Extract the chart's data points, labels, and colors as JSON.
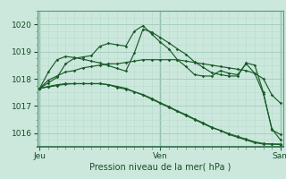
{
  "xlabel": "Pression niveau de la mer( hPa )",
  "background_color": "#cce8dc",
  "grid_color_major": "#a0ccbc",
  "grid_color_minor": "#b8ddd0",
  "line_color": "#1a5c2a",
  "border_color": "#5a9a7a",
  "ylim": [
    1015.5,
    1020.5
  ],
  "yticks": [
    1016,
    1017,
    1018,
    1019,
    1020
  ],
  "day_labels": [
    "Jeu",
    "Ven",
    "Sam"
  ],
  "day_positions": [
    0,
    14,
    28
  ],
  "n_points": 29,
  "series": [
    [
      1017.65,
      1017.85,
      1018.05,
      1018.55,
      1018.75,
      1018.8,
      1018.85,
      1019.2,
      1019.3,
      1019.25,
      1019.2,
      1019.75,
      1019.95,
      1019.65,
      1019.35,
      1019.1,
      1018.7,
      1018.45,
      1018.15,
      1018.1,
      1018.1,
      1018.3,
      1018.2,
      1018.15,
      1018.55,
      1018.2,
      1017.45,
      1016.15,
      1015.75
    ],
    [
      1017.65,
      1017.95,
      1018.1,
      1018.25,
      1018.3,
      1018.4,
      1018.45,
      1018.5,
      1018.55,
      1018.55,
      1018.6,
      1018.65,
      1018.7,
      1018.7,
      1018.7,
      1018.7,
      1018.7,
      1018.65,
      1018.6,
      1018.55,
      1018.5,
      1018.45,
      1018.4,
      1018.35,
      1018.3,
      1018.2,
      1018.0,
      1017.4,
      1017.1
    ],
    [
      1017.65,
      1017.7,
      1017.75,
      1017.8,
      1017.82,
      1017.82,
      1017.82,
      1017.82,
      1017.78,
      1017.72,
      1017.65,
      1017.52,
      1017.42,
      1017.28,
      1017.12,
      1016.98,
      1016.82,
      1016.68,
      1016.52,
      1016.38,
      1016.22,
      1016.1,
      1015.98,
      1015.88,
      1015.78,
      1015.68,
      1015.62,
      1015.6,
      1015.58
    ],
    [
      1017.65,
      1017.72,
      1017.78,
      1017.82,
      1017.82,
      1017.82,
      1017.82,
      1017.82,
      1017.78,
      1017.68,
      1017.62,
      1017.52,
      1017.4,
      1017.25,
      1017.1,
      1016.95,
      1016.8,
      1016.65,
      1016.5,
      1016.35,
      1016.2,
      1016.1,
      1015.95,
      1015.85,
      1015.75,
      1015.65,
      1015.6,
      1015.6,
      1015.6
    ],
    [
      1017.65,
      1018.25,
      1018.7,
      1018.82,
      1018.78,
      1018.72,
      1018.65,
      1018.58,
      1018.48,
      1018.38,
      1018.28,
      1018.95,
      1019.82,
      1019.72,
      1019.52,
      1019.32,
      1019.1,
      1018.9,
      1018.62,
      1018.42,
      1018.22,
      1018.15,
      1018.1,
      1018.1,
      1018.58,
      1018.5,
      1017.5,
      1016.12,
      1015.95
    ]
  ]
}
